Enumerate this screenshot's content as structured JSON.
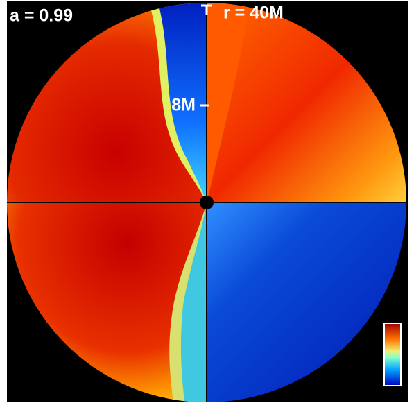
{
  "labels": {
    "spin": "a = 0.99",
    "outer_radius": "r = 40M",
    "inner_radius": "8M"
  }
}
